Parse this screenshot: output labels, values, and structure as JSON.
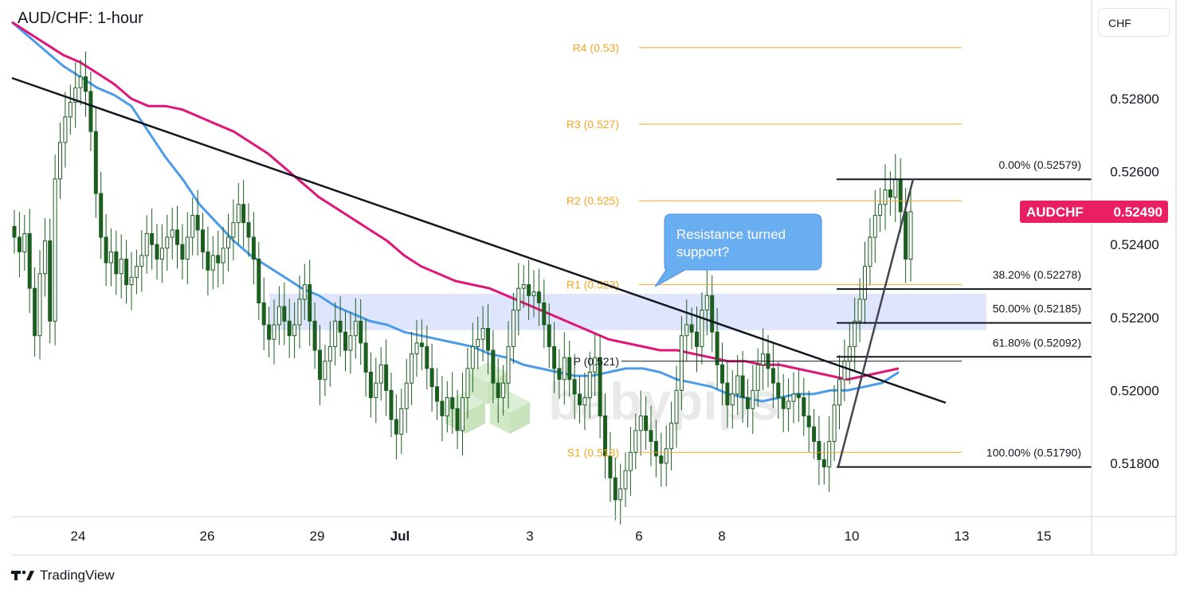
{
  "chart_title": "AUD/CHF: 1-hour",
  "currency_button": "CHF",
  "symbol_badge": {
    "label": "AUDCHF",
    "value": "0.52490",
    "color": "#e91e63"
  },
  "branding": {
    "tradingview": "TradingView",
    "watermark": "babypips"
  },
  "colors": {
    "bull": "#26a69a",
    "bear": "#ef5350",
    "candle": "#1b5e20",
    "ma_fast": "#4a9bea",
    "ma_slow": "#e0157a",
    "pivot": "#f5a623",
    "fib": "#131722",
    "zone": "#c9d4fb",
    "callout": "#6aaef2"
  },
  "callout": {
    "line1": "Resistance turned",
    "line2": "support?"
  },
  "chart_data": {
    "type": "candlestick",
    "title": "AUD/CHF: 1-hour",
    "x_tick_labels": [
      "24",
      "26",
      "29",
      "Jul",
      "3",
      "6",
      "8",
      "10",
      "13",
      "15"
    ],
    "y_tick_labels": [
      "0.52800",
      "0.52600",
      "0.52400",
      "0.52200",
      "0.52000",
      "0.51800"
    ],
    "ylim": [
      0.5167,
      0.5305
    ],
    "pivot_levels": [
      {
        "label": "R4 (0.53)",
        "value": 0.5294
      },
      {
        "label": "R3 (0.527)",
        "value": 0.5273
      },
      {
        "label": "R2 (0.525)",
        "value": 0.5252
      },
      {
        "label": "R1 (0.523)",
        "value": 0.5229
      },
      {
        "label": "P (0.521)",
        "value": 0.5208
      },
      {
        "label": "S1 (0.518)",
        "value": 0.5183
      }
    ],
    "fibonacci_levels": [
      {
        "label": "0.00% (0.52579)",
        "value": 0.52579
      },
      {
        "label": "38.20% (0.52278)",
        "value": 0.52278
      },
      {
        "label": "50.00% (0.52185)",
        "value": 0.52185
      },
      {
        "label": "61.80% (0.52092)",
        "value": 0.52092
      },
      {
        "label": "100.00% (0.51790)",
        "value": 0.5179
      }
    ],
    "support_resistance_zone": [
      0.52165,
      0.52265
    ],
    "last_price": 0.5249,
    "price_series": [
      0.5242,
      0.5238,
      0.5243,
      0.5228,
      0.5215,
      0.5232,
      0.5241,
      0.5219,
      0.5258,
      0.5268,
      0.5275,
      0.5279,
      0.5283,
      0.5286,
      0.5282,
      0.5271,
      0.5254,
      0.5242,
      0.5235,
      0.5238,
      0.5232,
      0.5236,
      0.5229,
      0.5231,
      0.5234,
      0.5237,
      0.5243,
      0.524,
      0.5236,
      0.5239,
      0.5242,
      0.5244,
      0.524,
      0.5236,
      0.5242,
      0.5248,
      0.5244,
      0.5238,
      0.5233,
      0.5237,
      0.5235,
      0.5239,
      0.5242,
      0.5246,
      0.5251,
      0.5246,
      0.5242,
      0.5236,
      0.5224,
      0.5218,
      0.5214,
      0.5218,
      0.5223,
      0.5219,
      0.5215,
      0.5218,
      0.5225,
      0.5229,
      0.5219,
      0.5211,
      0.5203,
      0.5208,
      0.5212,
      0.5219,
      0.5216,
      0.5211,
      0.5215,
      0.5219,
      0.5213,
      0.5205,
      0.5198,
      0.5202,
      0.5207,
      0.52,
      0.5192,
      0.5188,
      0.5195,
      0.5202,
      0.521,
      0.5213,
      0.5212,
      0.5206,
      0.5201,
      0.5197,
      0.5193,
      0.5198,
      0.5195,
      0.5189,
      0.5198,
      0.5206,
      0.5212,
      0.5214,
      0.5217,
      0.5211,
      0.5202,
      0.5198,
      0.5202,
      0.5212,
      0.5222,
      0.5228,
      0.5229,
      0.5226,
      0.5227,
      0.5224,
      0.5218,
      0.5212,
      0.5206,
      0.5203,
      0.5209,
      0.5203,
      0.5199,
      0.5196,
      0.5198,
      0.5205,
      0.5209,
      0.5193,
      0.5182,
      0.5176,
      0.517,
      0.5173,
      0.5178,
      0.5183,
      0.5189,
      0.5193,
      0.5189,
      0.5186,
      0.5182,
      0.518,
      0.5184,
      0.5191,
      0.52,
      0.5215,
      0.5218,
      0.5216,
      0.5212,
      0.5222,
      0.5226,
      0.5216,
      0.5207,
      0.5202,
      0.5196,
      0.5199,
      0.5204,
      0.5198,
      0.5195,
      0.52,
      0.5207,
      0.521,
      0.5206,
      0.5202,
      0.5198,
      0.5195,
      0.5197,
      0.5199,
      0.5198,
      0.5193,
      0.519,
      0.5186,
      0.5181,
      0.5179,
      0.5186,
      0.5196,
      0.5203,
      0.5208,
      0.5212,
      0.5219,
      0.5225,
      0.5234,
      0.5242,
      0.5248,
      0.5251,
      0.5255,
      0.5253,
      0.5258,
      0.5249,
      0.5236,
      0.5249
    ],
    "series": [
      {
        "values": [
          0.5301,
          0.5297,
          0.5293,
          0.5289,
          0.5286,
          0.5283,
          0.5281,
          0.5278,
          0.5271,
          0.5264,
          0.5258,
          0.5251,
          0.5246,
          0.5241,
          0.5237,
          0.5234,
          0.5231,
          0.5228,
          0.5226,
          0.5223,
          0.5221,
          0.5219,
          0.5218,
          0.5216,
          0.5215,
          0.5214,
          0.5213,
          0.5212,
          0.521,
          0.5209,
          0.5207,
          0.5206,
          0.5205,
          0.5204,
          0.5204,
          0.5205,
          0.5206,
          0.5206,
          0.5205,
          0.5203,
          0.5202,
          0.5201,
          0.5199,
          0.5198,
          0.5197,
          0.5198,
          0.5199,
          0.5199,
          0.52,
          0.52,
          0.5201,
          0.5202,
          0.5205
        ]
      },
      {
        "values": [
          0.5301,
          0.5298,
          0.5295,
          0.5292,
          0.529,
          0.5287,
          0.5284,
          0.528,
          0.5278,
          0.5278,
          0.5277,
          0.5275,
          0.5273,
          0.5271,
          0.5268,
          0.5265,
          0.5261,
          0.5257,
          0.5253,
          0.525,
          0.5247,
          0.5244,
          0.5241,
          0.5237,
          0.5234,
          0.5232,
          0.523,
          0.5229,
          0.5228,
          0.5226,
          0.5224,
          0.5222,
          0.522,
          0.5218,
          0.5216,
          0.5214,
          0.5213,
          0.5212,
          0.5211,
          0.5211,
          0.521,
          0.5209,
          0.5208,
          0.5208,
          0.5207,
          0.5207,
          0.5206,
          0.5205,
          0.5204,
          0.5203,
          0.5204,
          0.5205,
          0.5206
        ]
      }
    ],
    "trendlines": [
      {
        "from": [
          0,
          0.52857
        ],
        "to": [
          1,
          0.51975
        ]
      },
      {
        "from": [
          0,
          0.5179
        ],
        "to": [
          1,
          0.52579
        ]
      }
    ]
  }
}
